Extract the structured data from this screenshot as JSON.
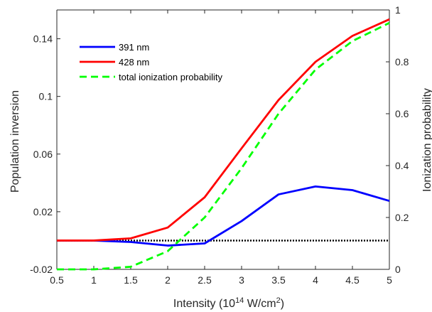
{
  "chart_data": {
    "type": "line",
    "x": [
      0.5,
      1,
      1.5,
      2,
      2.5,
      3,
      3.5,
      4,
      4.5,
      5
    ],
    "xlabel": {
      "prefix": "Intensity (10",
      "exp1": "14",
      "middle": " W/cm",
      "exp2": "2",
      "suffix": ")"
    },
    "xlim": [
      0.5,
      5
    ],
    "xticks": [
      0.5,
      1,
      1.5,
      2,
      2.5,
      3,
      3.5,
      4,
      4.5,
      5
    ],
    "xtick_labels": [
      "0.5",
      "1",
      "1.5",
      "2",
      "2.5",
      "3",
      "3.5",
      "4",
      "4.5",
      "5"
    ],
    "ylabel_left": "Population inversion",
    "ylim_left": [
      -0.02,
      0.16
    ],
    "yticks_left": [
      -0.02,
      0.02,
      0.06,
      0.1,
      0.14
    ],
    "ytick_labels_left": [
      "-0.02",
      "0.02",
      "0.06",
      "0.1",
      "0.14"
    ],
    "ylabel_right": "Ionization probability",
    "ylim_right": [
      0,
      1
    ],
    "yticks_right": [
      0,
      0.2,
      0.4,
      0.6,
      0.8,
      1
    ],
    "ytick_labels_right": [
      "0",
      "0.2",
      "0.4",
      "0.6",
      "0.8",
      "1"
    ],
    "grid": false,
    "legend_position": "top-left",
    "series": [
      {
        "name": "391 nm",
        "axis": "left",
        "style": "solid",
        "color": "#0000ff",
        "values": [
          0.0,
          0.0,
          -0.001,
          -0.0035,
          -0.002,
          0.0135,
          0.032,
          0.0375,
          0.035,
          0.0275
        ]
      },
      {
        "name": "428 nm",
        "axis": "left",
        "style": "solid",
        "color": "#ff0000",
        "values": [
          0.0,
          0.0,
          0.0015,
          0.009,
          0.03,
          0.064,
          0.0975,
          0.124,
          0.142,
          0.1535
        ]
      },
      {
        "name": "total ionization probability",
        "axis": "right",
        "style": "dashed",
        "color": "#00ff00",
        "values": [
          0.0,
          0.0,
          0.01,
          0.07,
          0.2,
          0.39,
          0.6,
          0.77,
          0.88,
          0.95
        ]
      }
    ],
    "reference_line": {
      "axis": "left",
      "value": 0,
      "style": "dotted",
      "color": "#000000"
    }
  }
}
